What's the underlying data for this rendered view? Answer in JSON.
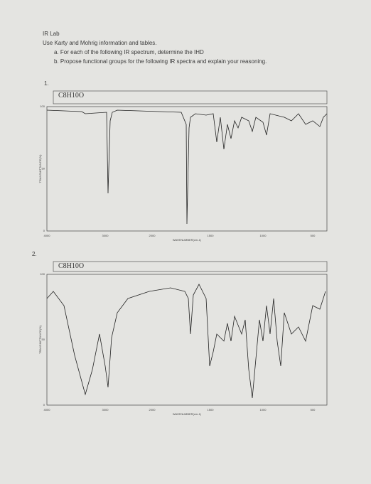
{
  "header": {
    "title": "IR Lab",
    "instruction": "Use Karty and Mohrig information and tables.",
    "items": [
      "a.  For each of the following IR spectrum, determine the IHD",
      "b.  Propose functional groups for the following IR spectra and explain your reasoning."
    ]
  },
  "spectra": [
    {
      "number": "1.",
      "formula": "C8H10O",
      "xticks": [
        "4000",
        "3000",
        "2000",
        "1500",
        "1000",
        "500"
      ],
      "yticks": [
        "100",
        "50",
        "0"
      ],
      "xlabel": "WAVENUMBER(cm-1)",
      "ylabel": "TRANSMITTANCE(%)"
    },
    {
      "number": "2.",
      "formula": "C8H10O",
      "xticks": [
        "4000",
        "3000",
        "2000",
        "1500",
        "1000",
        "500"
      ],
      "yticks": [
        "100",
        "50",
        "0"
      ],
      "xlabel": "WAVENUMBER(cm-1)",
      "ylabel": "TRANSMITTANCE(%)"
    }
  ]
}
